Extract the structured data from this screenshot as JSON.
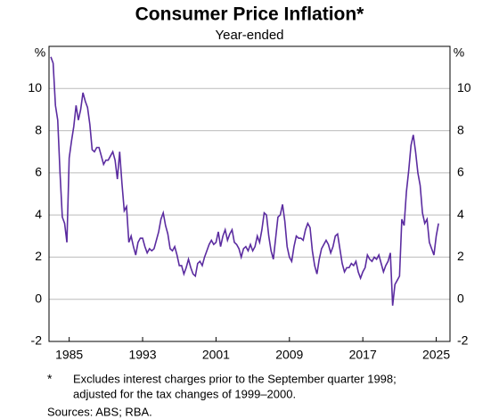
{
  "chart_data": {
    "type": "line",
    "title": "Consumer Price Inflation*",
    "subtitle": "Year-ended",
    "unit": "%",
    "footnote_marker": "*",
    "footnote": [
      "Excludes interest charges prior to the September quarter 1998;",
      "adjusted for the tax changes of 1999–2000."
    ],
    "source": "Sources: ABS; RBA.",
    "xlim": [
      1982.8,
      2026.5
    ],
    "xticks": [
      1985,
      1993,
      2001,
      2009,
      2017,
      2025
    ],
    "ylim": [
      -2,
      12
    ],
    "yticks": [
      -2,
      0,
      2,
      4,
      6,
      8,
      10
    ],
    "grid": true,
    "x": [
      1983,
      1983.25,
      1983.5,
      1983.75,
      1984,
      1984.25,
      1984.5,
      1984.75,
      1985,
      1985.25,
      1985.5,
      1985.75,
      1986,
      1986.25,
      1986.5,
      1986.75,
      1987,
      1987.25,
      1987.5,
      1987.75,
      1988,
      1988.25,
      1988.5,
      1988.75,
      1989,
      1989.25,
      1989.5,
      1989.75,
      1990,
      1990.25,
      1990.5,
      1990.75,
      1991,
      1991.25,
      1991.5,
      1991.75,
      1992,
      1992.25,
      1992.5,
      1992.75,
      1993,
      1993.25,
      1993.5,
      1993.75,
      1994,
      1994.25,
      1994.5,
      1994.75,
      1995,
      1995.25,
      1995.5,
      1995.75,
      1996,
      1996.25,
      1996.5,
      1996.75,
      1997,
      1997.25,
      1997.5,
      1997.75,
      1998,
      1998.25,
      1998.5,
      1998.75,
      1999,
      1999.25,
      1999.5,
      1999.75,
      2000,
      2000.25,
      2000.5,
      2000.75,
      2001,
      2001.25,
      2001.5,
      2001.75,
      2002,
      2002.25,
      2002.5,
      2002.75,
      2003,
      2003.25,
      2003.5,
      2003.75,
      2004,
      2004.25,
      2004.5,
      2004.75,
      2005,
      2005.25,
      2005.5,
      2005.75,
      2006,
      2006.25,
      2006.5,
      2006.75,
      2007,
      2007.25,
      2007.5,
      2007.75,
      2008,
      2008.25,
      2008.5,
      2008.75,
      2009,
      2009.25,
      2009.5,
      2009.75,
      2010,
      2010.25,
      2010.5,
      2010.75,
      2011,
      2011.25,
      2011.5,
      2011.75,
      2012,
      2012.25,
      2012.5,
      2012.75,
      2013,
      2013.25,
      2013.5,
      2013.75,
      2014,
      2014.25,
      2014.5,
      2014.75,
      2015,
      2015.25,
      2015.5,
      2015.75,
      2016,
      2016.25,
      2016.5,
      2016.75,
      2017,
      2017.25,
      2017.5,
      2017.75,
      2018,
      2018.25,
      2018.5,
      2018.75,
      2019,
      2019.25,
      2019.5,
      2019.75,
      2020,
      2020.25,
      2020.5,
      2020.75,
      2021,
      2021.25,
      2021.5,
      2021.75,
      2022,
      2022.25,
      2022.5,
      2022.75,
      2023,
      2023.25,
      2023.5,
      2023.75,
      2024,
      2024.25,
      2024.5,
      2024.75,
      2025,
      2025.25
    ],
    "series": [
      {
        "color": "#5b2ca0",
        "values": [
          11.5,
          11.2,
          9.2,
          8.5,
          6,
          3.9,
          3.6,
          2.7,
          6.7,
          7.5,
          8.2,
          9.2,
          8.5,
          9.0,
          9.8,
          9.4,
          9.1,
          8.3,
          7.1,
          7.0,
          7.2,
          7.2,
          6.8,
          6.4,
          6.6,
          6.6,
          6.8,
          7.0,
          6.6,
          5.7,
          7.0,
          5.5,
          4.2,
          4.4,
          2.7,
          3.0,
          2.5,
          2.1,
          2.7,
          2.9,
          2.9,
          2.5,
          2.2,
          2.4,
          2.3,
          2.4,
          2.8,
          3.2,
          3.8,
          4.1,
          3.5,
          3.1,
          2.4,
          2.3,
          2.5,
          2.1,
          1.6,
          1.6,
          1.2,
          1.5,
          1.9,
          1.5,
          1.2,
          1.1,
          1.7,
          1.8,
          1.6,
          2.0,
          2.3,
          2.6,
          2.8,
          2.6,
          2.7,
          3.2,
          2.5,
          3.0,
          3.3,
          2.8,
          3.1,
          3.3,
          2.7,
          2.6,
          2.4,
          2.0,
          2.4,
          2.5,
          2.3,
          2.6,
          2.3,
          2.5,
          3.0,
          2.7,
          3.3,
          4.1,
          4.0,
          3.0,
          2.3,
          1.9,
          2.9,
          3.9,
          4.0,
          4.5,
          3.7,
          2.5,
          2.0,
          1.8,
          2.5,
          3.0,
          2.9,
          2.9,
          2.8,
          3.3,
          3.6,
          3.4,
          2.3,
          1.6,
          1.2,
          1.9,
          2.4,
          2.6,
          2.8,
          2.6,
          2.2,
          2.5,
          3.0,
          3.1,
          2.4,
          1.7,
          1.3,
          1.5,
          1.5,
          1.7,
          1.6,
          1.8,
          1.3,
          1.0,
          1.3,
          1.5,
          2.1,
          1.9,
          1.8,
          2.0,
          1.9,
          2.1,
          1.7,
          1.3,
          1.6,
          1.8,
          2.2,
          -0.3,
          0.7,
          0.9,
          1.1,
          3.8,
          3.5,
          5.1,
          6.1,
          7.3,
          7.8,
          7.0,
          6.0,
          5.4,
          4.1,
          3.6,
          3.8,
          2.7,
          2.4,
          2.1,
          3.0,
          3.6
        ]
      }
    ]
  }
}
